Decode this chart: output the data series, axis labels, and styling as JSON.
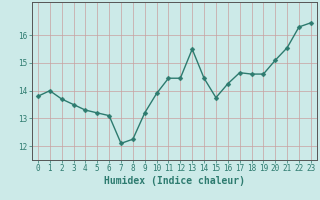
{
  "xlabel": "Humidex (Indice chaleur)",
  "x": [
    0,
    1,
    2,
    3,
    4,
    5,
    6,
    7,
    8,
    9,
    10,
    11,
    12,
    13,
    14,
    15,
    16,
    17,
    18,
    19,
    20,
    21,
    22,
    23
  ],
  "y": [
    13.8,
    14.0,
    13.7,
    13.5,
    13.3,
    13.2,
    13.1,
    12.1,
    12.25,
    13.2,
    13.9,
    14.45,
    14.45,
    15.5,
    14.45,
    13.75,
    14.25,
    14.65,
    14.6,
    14.6,
    15.1,
    15.55,
    16.3,
    16.45
  ],
  "line_color": "#2d7b6f",
  "marker": "D",
  "marker_size": 2.5,
  "bg_color": "#cceae8",
  "grid_color": "#c8a0a0",
  "axis_color": "#2d7b6f",
  "spine_color": "#555555",
  "ylim": [
    11.5,
    17.2
  ],
  "yticks": [
    12,
    13,
    14,
    15,
    16
  ],
  "xticks": [
    0,
    1,
    2,
    3,
    4,
    5,
    6,
    7,
    8,
    9,
    10,
    11,
    12,
    13,
    14,
    15,
    16,
    17,
    18,
    19,
    20,
    21,
    22,
    23
  ],
  "tick_fontsize": 5.5,
  "label_fontsize": 7.0,
  "line_width": 1.0
}
